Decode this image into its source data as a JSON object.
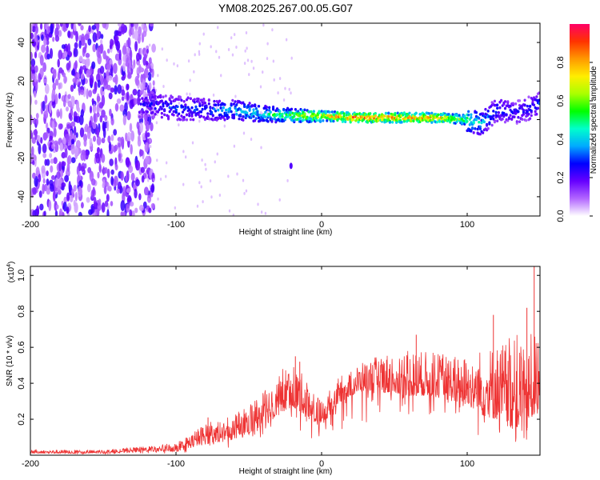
{
  "title": "YM08.2025.267.00.05.G07",
  "chart_data": [
    {
      "type": "heatmap",
      "name": "spectrogram",
      "xlabel": "Height of straight line (km)",
      "ylabel": "Frequency (Hz)",
      "xlim": [
        -200,
        150
      ],
      "ylim": [
        -50,
        50
      ],
      "xticks": [
        -200,
        -100,
        0,
        100
      ],
      "yticks": [
        -40,
        -20,
        0,
        20,
        40
      ],
      "colorbar": {
        "label": "Normalized spectral amplitude",
        "range": [
          0,
          1
        ],
        "ticks": [
          "0.0",
          "0.2",
          "0.4",
          "0.6",
          "0.8"
        ],
        "colors": [
          "#ffffff",
          "#b266ff",
          "#6600ff",
          "#0000ff",
          "#00aaff",
          "#00ffcc",
          "#00ff00",
          "#aaff00",
          "#ffee00",
          "#ff9900",
          "#ff3300",
          "#ff0066"
        ]
      },
      "ridge": {
        "description": "dominant frequency line",
        "x": [
          -120,
          -100,
          -80,
          -60,
          -40,
          -20,
          0,
          20,
          40,
          60,
          80,
          100,
          110,
          120,
          135,
          150
        ],
        "y": [
          8,
          6,
          5,
          5,
          3,
          2,
          2,
          1,
          1,
          1,
          1,
          0,
          -2,
          5,
          4,
          8
        ],
        "amplitude": [
          0.25,
          0.3,
          0.32,
          0.4,
          0.45,
          0.6,
          0.7,
          0.85,
          0.85,
          0.8,
          0.8,
          0.55,
          0.4,
          0.3,
          0.25,
          0.3
        ]
      },
      "noise_region_x": [
        -200,
        -115
      ]
    },
    {
      "type": "line",
      "name": "snr",
      "xlabel": "Height of straight line (km)",
      "ylabel": "SNR (10 * v/v)",
      "exponent_label": "(x10",
      "exponent_sup": "4",
      "exponent_close": ")",
      "xlim": [
        -200,
        150
      ],
      "ylim": [
        0,
        1.05
      ],
      "xticks": [
        -200,
        -100,
        0,
        100
      ],
      "yticks": [
        0.2,
        0.4,
        0.6,
        0.8,
        1.0
      ],
      "color": "#ee3333",
      "envelope": {
        "x": [
          -200,
          -150,
          -120,
          -100,
          -90,
          -80,
          -70,
          -60,
          -50,
          -40,
          -30,
          -20,
          -10,
          0,
          10,
          20,
          30,
          40,
          50,
          60,
          70,
          80,
          90,
          100,
          110,
          120,
          130,
          140,
          150
        ],
        "base": [
          0.01,
          0.01,
          0.02,
          0.02,
          0.04,
          0.06,
          0.07,
          0.09,
          0.12,
          0.16,
          0.22,
          0.27,
          0.22,
          0.15,
          0.28,
          0.33,
          0.36,
          0.35,
          0.34,
          0.33,
          0.33,
          0.32,
          0.3,
          0.28,
          0.22,
          0.2,
          0.15,
          0.12,
          0.3
        ],
        "peak": [
          0.03,
          0.03,
          0.05,
          0.07,
          0.12,
          0.18,
          0.2,
          0.22,
          0.3,
          0.36,
          0.48,
          0.52,
          0.42,
          0.3,
          0.42,
          0.48,
          0.52,
          0.56,
          0.58,
          0.58,
          0.58,
          0.57,
          0.56,
          0.55,
          0.6,
          0.62,
          0.66,
          0.7,
          0.65
        ]
      },
      "spikes": [
        {
          "x": -78,
          "y": 0.21
        },
        {
          "x": -18,
          "y": 0.55
        },
        {
          "x": -15,
          "y": 0.52
        },
        {
          "x": 65,
          "y": 0.67
        },
        {
          "x": 118,
          "y": 0.78
        },
        {
          "x": 141,
          "y": 0.82
        },
        {
          "x": 146,
          "y": 1.05
        }
      ]
    }
  ]
}
